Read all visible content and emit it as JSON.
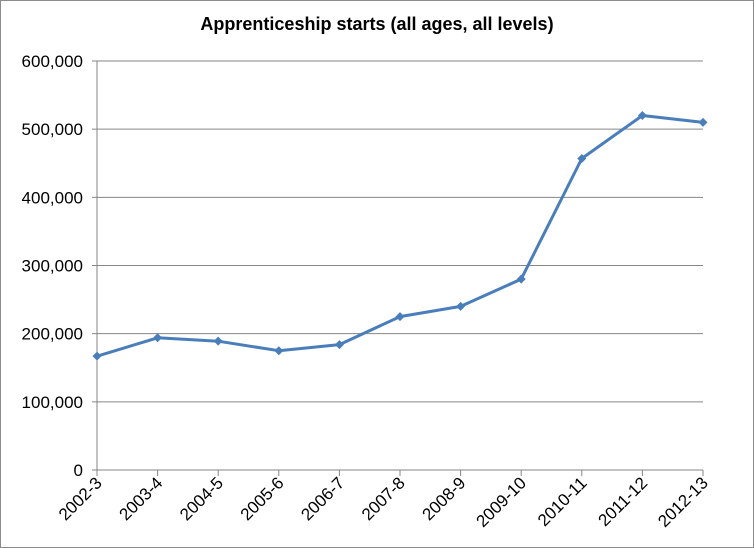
{
  "chart_data": {
    "type": "line",
    "title": "Apprenticeship starts (all ages, all levels)",
    "xlabel": "",
    "ylabel": "",
    "categories": [
      "2002-3",
      "2003-4",
      "2004-5",
      "2005-6",
      "2006-7",
      "2007-8",
      "2008-9",
      "2009-10",
      "2010-11",
      "2011-12",
      "2012-13"
    ],
    "series": [
      {
        "values": [
          167000,
          194000,
          189000,
          175000,
          184000,
          225000,
          240000,
          280000,
          457000,
          520000,
          510000
        ]
      }
    ],
    "ylim": [
      0,
      600000
    ],
    "yticks": [
      0,
      100000,
      200000,
      300000,
      400000,
      500000,
      600000
    ],
    "ytick_labels": [
      "0",
      "100,000",
      "200,000",
      "300,000",
      "400,000",
      "500,000",
      "600,000"
    ],
    "grid": "horizontal",
    "legend": "none",
    "line_color": "#4a7ebb",
    "gridline_color": "#868686"
  }
}
